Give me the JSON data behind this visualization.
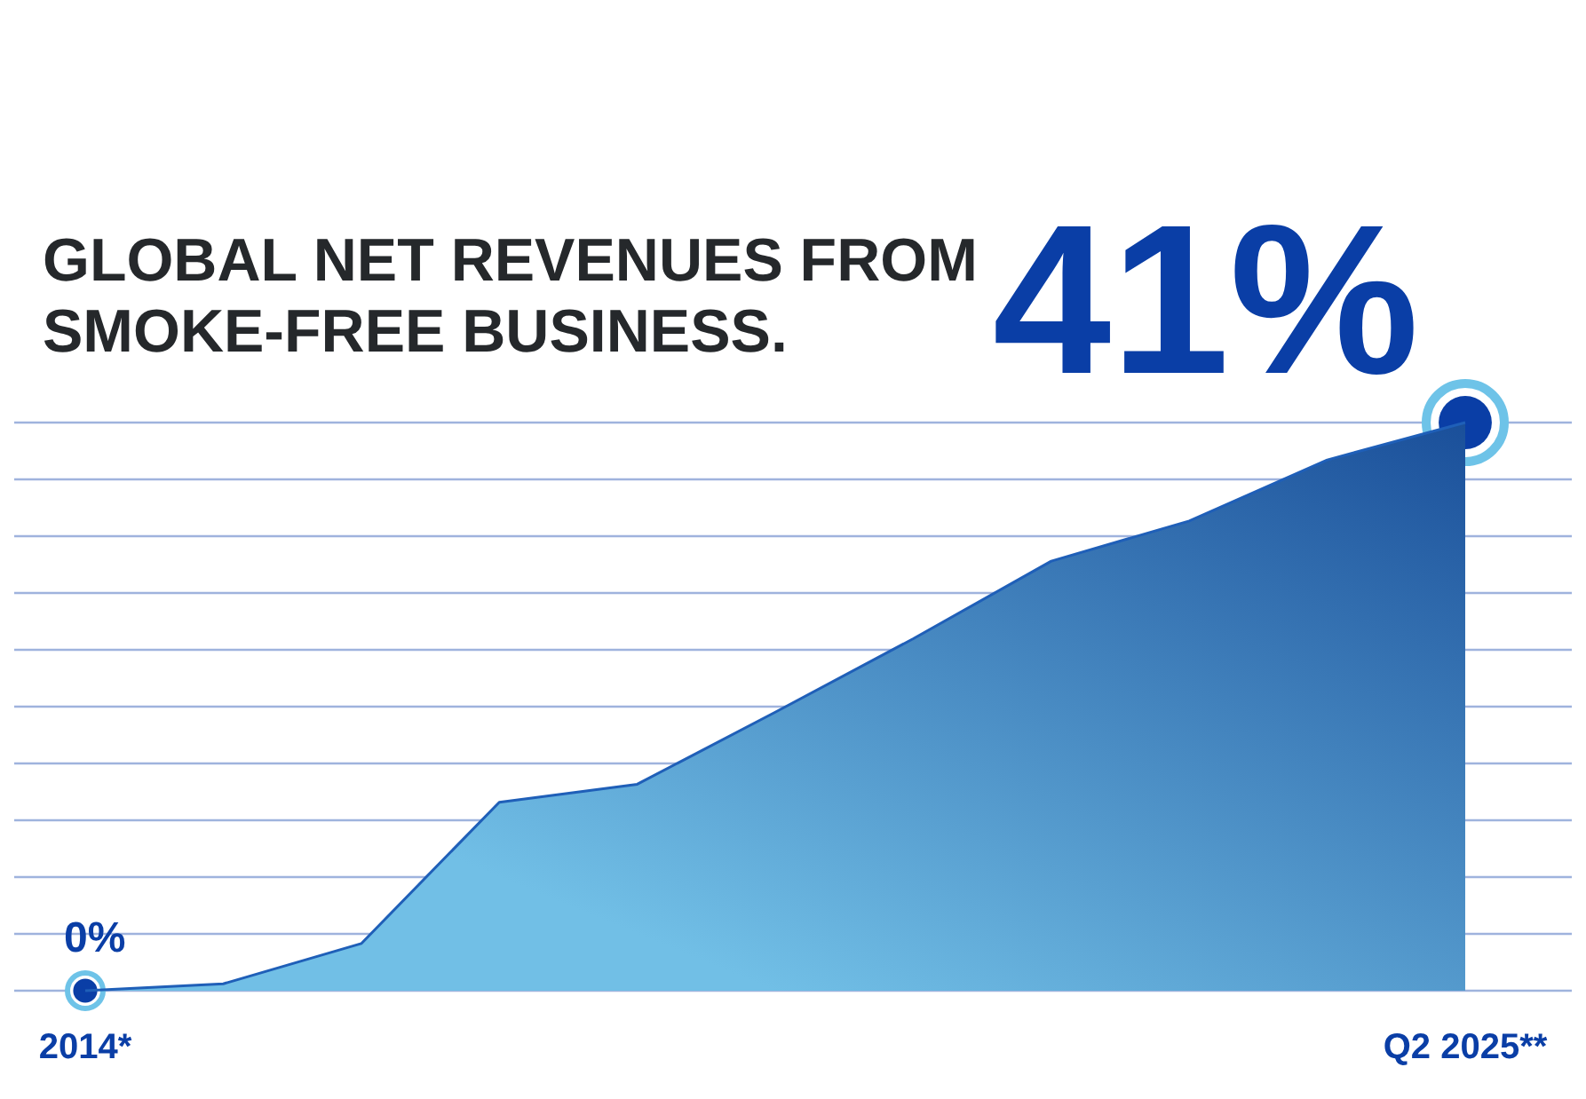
{
  "chart_data": {
    "type": "area",
    "title": "GLOBAL NET REVENUES FROM SMOKE-FREE BUSINESS.",
    "categories": [
      "2014*",
      null,
      null,
      null,
      null,
      null,
      null,
      null,
      null,
      null,
      "Q2 2025**"
    ],
    "series": [
      {
        "color": "#1f5fb8",
        "values": [
          0,
          0.5,
          3.4,
          13.6,
          14.9,
          20.1,
          25.4,
          31.0,
          33.9,
          38.3,
          41
        ],
        "value_labels": [
          "0%",
          null,
          null,
          null,
          null,
          null,
          null,
          null,
          null,
          null,
          "41%"
        ]
      }
    ],
    "ylim": [
      0,
      41
    ],
    "yticks": [
      {
        "value": 0,
        "label": null
      },
      {
        "value": 4.1,
        "label": null
      },
      {
        "value": 8.2,
        "label": null
      },
      {
        "value": 12.3,
        "label": null
      },
      {
        "value": 16.4,
        "label": null
      },
      {
        "value": 20.5,
        "label": null
      },
      {
        "value": 24.6,
        "label": null
      },
      {
        "value": 28.7,
        "label": null
      },
      {
        "value": 32.8,
        "label": null
      },
      {
        "value": 36.9,
        "label": null
      },
      {
        "value": 41,
        "label": null
      }
    ],
    "grid": "y",
    "tick_labels": "x"
  }
}
